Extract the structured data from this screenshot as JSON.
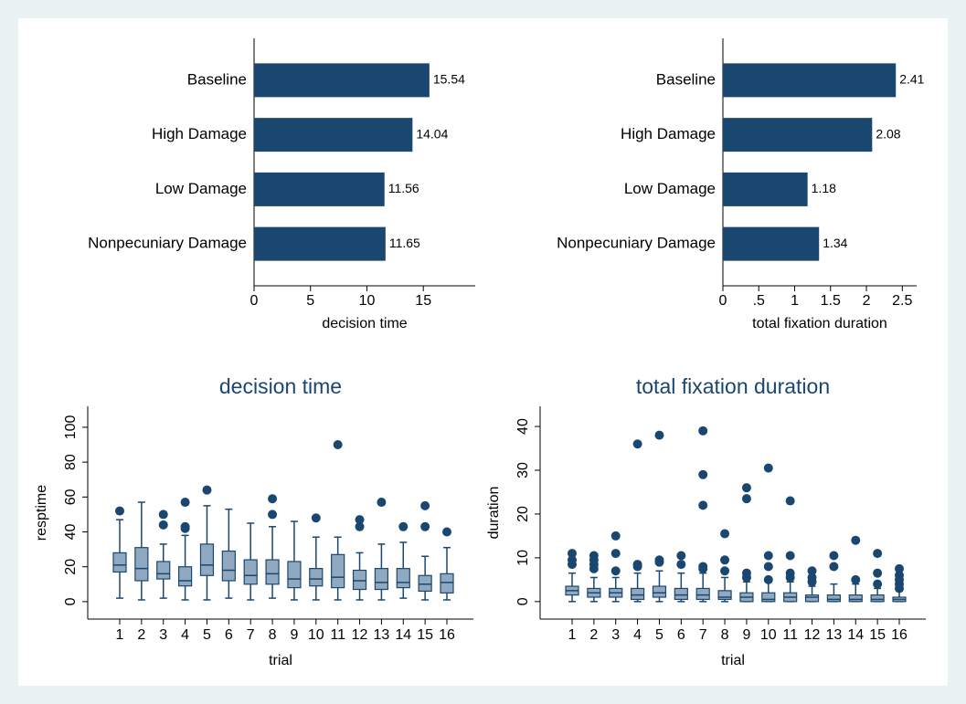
{
  "chart_data": [
    {
      "type": "bar",
      "orientation": "horizontal",
      "xlabel": "decision time",
      "categories": [
        "Baseline",
        "High Damage",
        "Low Damage",
        "Nonpecuniary Damage"
      ],
      "values": [
        15.54,
        14.04,
        11.56,
        11.65
      ],
      "color": "#1a476f",
      "xlim": [
        0,
        19.6
      ],
      "xticks": [
        0,
        5,
        10,
        15
      ],
      "grid": false
    },
    {
      "type": "bar",
      "orientation": "horizontal",
      "xlabel": "total fixation duration",
      "categories": [
        "Baseline",
        "High Damage",
        "Low Damage",
        "Nonpecuniary Damage"
      ],
      "values": [
        2.41,
        2.08,
        1.18,
        1.34
      ],
      "color": "#1a476f",
      "xlim": [
        0,
        2.7
      ],
      "xticks": [
        0,
        {
          "value": 0.5,
          "label": ".5"
        },
        1,
        1.5,
        2,
        2.5
      ],
      "grid": false
    },
    {
      "type": "box",
      "title": "decision time",
      "xlabel": "trial",
      "ylabel": "resptime",
      "categories": [
        "1",
        "2",
        "3",
        "4",
        "5",
        "6",
        "7",
        "8",
        "9",
        "10",
        "11",
        "12",
        "13",
        "14",
        "15",
        "16"
      ],
      "color": "#90a8c0",
      "edge_color": "#1a476f",
      "ylim": [
        -10,
        112
      ],
      "yticks": [
        0,
        20,
        40,
        60,
        80,
        100
      ],
      "grid": false,
      "boxes": [
        {
          "min": 2,
          "q1": 17,
          "median": 21,
          "q3": 28,
          "max": 47,
          "outliers": [
            52
          ]
        },
        {
          "min": 1,
          "q1": 12,
          "median": 19,
          "q3": 31,
          "max": 57,
          "outliers": []
        },
        {
          "min": 2,
          "q1": 13,
          "median": 16,
          "q3": 23,
          "max": 33,
          "outliers": [
            44,
            50
          ]
        },
        {
          "min": 1,
          "q1": 9,
          "median": 12,
          "q3": 20,
          "max": 38,
          "outliers": [
            42,
            43,
            57
          ]
        },
        {
          "min": 1,
          "q1": 15,
          "median": 21,
          "q3": 33,
          "max": 55,
          "outliers": [
            64
          ]
        },
        {
          "min": 2,
          "q1": 12,
          "median": 18,
          "q3": 29,
          "max": 53,
          "outliers": []
        },
        {
          "min": 1,
          "q1": 10,
          "median": 15,
          "q3": 24,
          "max": 45,
          "outliers": []
        },
        {
          "min": 2,
          "q1": 10,
          "median": 16,
          "q3": 24,
          "max": 43,
          "outliers": [
            50,
            59
          ]
        },
        {
          "min": 1,
          "q1": 8,
          "median": 13,
          "q3": 23,
          "max": 46,
          "outliers": []
        },
        {
          "min": 1,
          "q1": 9,
          "median": 13,
          "q3": 19,
          "max": 37,
          "outliers": [
            48
          ]
        },
        {
          "min": 1,
          "q1": 8,
          "median": 14,
          "q3": 27,
          "max": 37,
          "outliers": [
            90
          ]
        },
        {
          "min": 1,
          "q1": 7,
          "median": 12,
          "q3": 18,
          "max": 28,
          "outliers": [
            43,
            47
          ]
        },
        {
          "min": 1,
          "q1": 7,
          "median": 11,
          "q3": 19,
          "max": 33,
          "outliers": [
            57
          ]
        },
        {
          "min": 2,
          "q1": 8,
          "median": 11,
          "q3": 19,
          "max": 34,
          "outliers": [
            43
          ]
        },
        {
          "min": 1,
          "q1": 6,
          "median": 10,
          "q3": 15,
          "max": 26,
          "outliers": [
            43,
            55
          ]
        },
        {
          "min": 1,
          "q1": 5,
          "median": 11,
          "q3": 16,
          "max": 31,
          "outliers": [
            40
          ]
        }
      ]
    },
    {
      "type": "box",
      "title": "total fixation duration",
      "xlabel": "trial",
      "ylabel": "duration",
      "categories": [
        "1",
        "2",
        "3",
        "4",
        "5",
        "6",
        "7",
        "8",
        "9",
        "10",
        "11",
        "12",
        "13",
        "14",
        "15",
        "16"
      ],
      "color": "#90a8c0",
      "edge_color": "#1a476f",
      "ylim": [
        -4,
        44.6
      ],
      "yticks": [
        0,
        10,
        20,
        30,
        40
      ],
      "grid": false,
      "boxes": [
        {
          "min": 0,
          "q1": 1.5,
          "median": 2.5,
          "q3": 3.5,
          "max": 6.5,
          "outliers": [
            8.5,
            9.5,
            11
          ]
        },
        {
          "min": 0,
          "q1": 1,
          "median": 2,
          "q3": 3,
          "max": 5.5,
          "outliers": [
            7.5,
            8.5,
            9.5,
            10.5
          ]
        },
        {
          "min": 0,
          "q1": 1,
          "median": 2,
          "q3": 3,
          "max": 5.5,
          "outliers": [
            7,
            11,
            15
          ]
        },
        {
          "min": 0,
          "q1": 0.5,
          "median": 1.5,
          "q3": 3,
          "max": 6.5,
          "outliers": [
            8,
            8.5,
            36
          ]
        },
        {
          "min": 0,
          "q1": 1,
          "median": 2,
          "q3": 3.5,
          "max": 7,
          "outliers": [
            9,
            9.5,
            38
          ]
        },
        {
          "min": 0,
          "q1": 0.5,
          "median": 1.5,
          "q3": 3,
          "max": 6.5,
          "outliers": [
            8.5,
            10.5
          ]
        },
        {
          "min": 0,
          "q1": 0.5,
          "median": 1.5,
          "q3": 3,
          "max": 6.5,
          "outliers": [
            7.5,
            8,
            22,
            29,
            39
          ]
        },
        {
          "min": 0,
          "q1": 0.5,
          "median": 1,
          "q3": 2.5,
          "max": 5.5,
          "outliers": [
            7,
            9.5,
            15.5
          ]
        },
        {
          "min": 0,
          "q1": 0,
          "median": 1,
          "q3": 2,
          "max": 4.5,
          "outliers": [
            5.5,
            6.5,
            23.5,
            26
          ]
        },
        {
          "min": 0,
          "q1": 0,
          "median": 0.5,
          "q3": 2,
          "max": 4.5,
          "outliers": [
            5,
            8,
            10.5,
            30.5
          ]
        },
        {
          "min": 0,
          "q1": 0,
          "median": 1,
          "q3": 2,
          "max": 4.5,
          "outliers": [
            5.5,
            6.5,
            10.5,
            23
          ]
        },
        {
          "min": 0,
          "q1": 0,
          "median": 1,
          "q3": 1.5,
          "max": 3.5,
          "outliers": [
            4.5,
            5.5,
            7
          ]
        },
        {
          "min": 0,
          "q1": 0,
          "median": 0.5,
          "q3": 1.5,
          "max": 4,
          "outliers": [
            8,
            10.5
          ]
        },
        {
          "min": 0,
          "q1": 0,
          "median": 0.5,
          "q3": 1.5,
          "max": 4,
          "outliers": [
            5,
            14
          ]
        },
        {
          "min": 0,
          "q1": 0,
          "median": 0.5,
          "q3": 1.5,
          "max": 3,
          "outliers": [
            4,
            6.5,
            11
          ]
        },
        {
          "min": 0,
          "q1": 0,
          "median": 0.5,
          "q3": 1,
          "max": 2.5,
          "outliers": [
            3,
            4,
            5,
            6,
            7.5
          ]
        }
      ]
    }
  ]
}
